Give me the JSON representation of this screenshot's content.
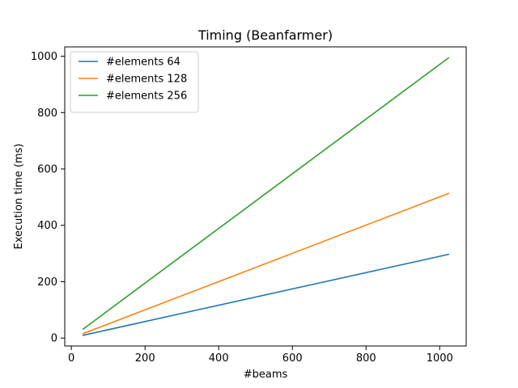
{
  "chart_data": {
    "type": "line",
    "title": "Timing (Beanfarmer)",
    "xlabel": "#beams",
    "ylabel": "Execution time (ms)",
    "xlim": [
      -18,
      1072
    ],
    "ylim": [
      -28,
      1033
    ],
    "xticks": [
      0,
      200,
      400,
      600,
      800,
      1000
    ],
    "yticks": [
      0,
      200,
      400,
      600,
      800,
      1000
    ],
    "legend_position": "top-left",
    "grid": false,
    "series": [
      {
        "name": "#elements 64",
        "color": "#1f77b4",
        "x": [
          32,
          1024
        ],
        "y": [
          10,
          297
        ]
      },
      {
        "name": "#elements 128",
        "color": "#ff7f0e",
        "x": [
          32,
          1024
        ],
        "y": [
          16,
          513
        ]
      },
      {
        "name": "#elements 256",
        "color": "#2ca02c",
        "x": [
          32,
          1024
        ],
        "y": [
          32,
          994
        ]
      }
    ]
  }
}
